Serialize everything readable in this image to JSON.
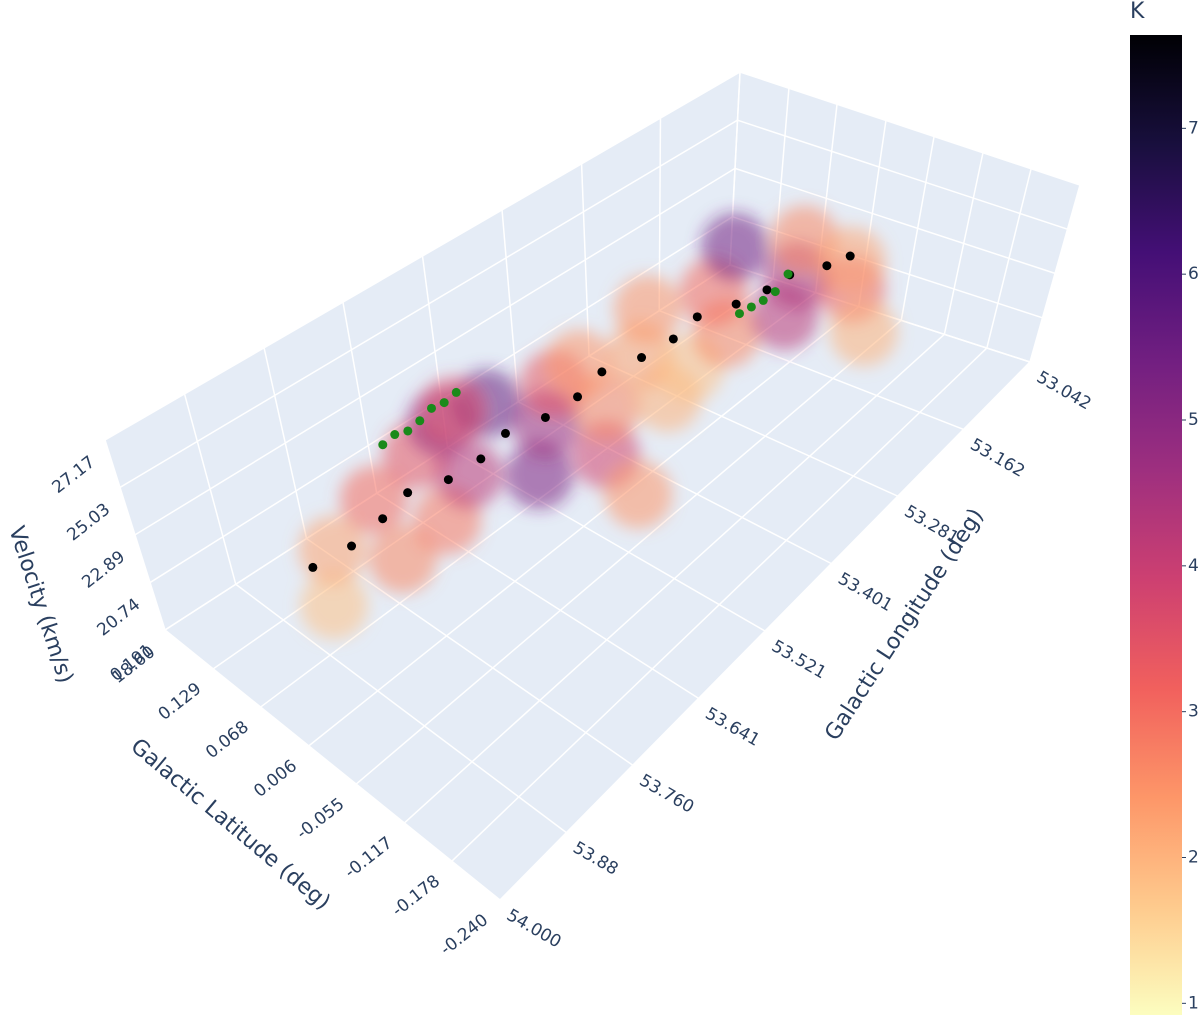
{
  "chart_data": {
    "type": "scatter3d",
    "x_title": "Galactic Longitude (deg)",
    "y_title": "Galactic Latitude (deg)",
    "z_title": "Velocity (km/s)",
    "xlim": [
      53.042,
      54.0
    ],
    "ylim": [
      -0.24,
      0.191
    ],
    "zlim": [
      18.6,
      27.17
    ],
    "xticks": [
      53.042,
      53.162,
      53.281,
      53.401,
      53.521,
      53.641,
      {
        "value": 53.76,
        "label": "53.760"
      },
      53.88,
      {
        "value": 54.0,
        "label": "54.000"
      }
    ],
    "yticks": [
      0.191,
      0.129,
      0.068,
      0.006,
      -0.055,
      -0.117,
      -0.178,
      {
        "value": -0.24,
        "label": "-0.240"
      }
    ],
    "zticks": [
      {
        "value": 18.6,
        "label": "18.60"
      },
      20.74,
      22.89,
      25.03,
      27.17
    ],
    "wall_color": "#e5ecf6",
    "grid": true,
    "colorbar": {
      "title": "K",
      "clim": [
        0.92,
        7.64
      ],
      "ticks": [
        1,
        2,
        3,
        4,
        5,
        6,
        7
      ],
      "colorscale": [
        "#fcfdbf",
        "#feca8d",
        "#fd9668",
        "#f1605d",
        "#cd4071",
        "#9e2f7f",
        "#721f81",
        "#440f76",
        "#180f3d",
        "#000004"
      ]
    },
    "volume": {
      "x": [
        53.93,
        53.88,
        53.84,
        53.8,
        53.76,
        53.72,
        53.69,
        53.66,
        53.63,
        53.6,
        53.57,
        53.55,
        53.52,
        53.5,
        53.47,
        53.44,
        53.41,
        53.38,
        53.35,
        53.31,
        53.27,
        53.24,
        53.2,
        53.17,
        53.14,
        53.11,
        53.09,
        53.15,
        53.6,
        53.55
      ],
      "y": [
        -0.02,
        0.02,
        -0.04,
        0.03,
        -0.03,
        0.04,
        0.0,
        0.06,
        -0.04,
        0.05,
        0.0,
        -0.06,
        0.03,
        -0.02,
        0.04,
        -0.05,
        0.01,
        -0.03,
        0.05,
        -0.02,
        0.03,
        -0.04,
        0.06,
        0.0,
        -0.05,
        0.04,
        -0.01,
        -0.08,
        0.1,
        -0.1
      ],
      "z": [
        24.2,
        24.6,
        24.9,
        25.0,
        24.7,
        25.2,
        24.6,
        25.0,
        24.2,
        24.9,
        24.4,
        23.8,
        24.6,
        24.1,
        24.3,
        23.8,
        24.0,
        23.5,
        24.2,
        23.4,
        23.7,
        23.0,
        23.9,
        22.8,
        22.2,
        22.7,
        21.9,
        20.8,
        23.5,
        22.8
      ],
      "k": [
        1.8,
        2.2,
        2.6,
        3.0,
        2.8,
        3.4,
        4.2,
        4.8,
        5.2,
        5.6,
        4.6,
        3.8,
        3.4,
        2.6,
        2.4,
        2.0,
        2.2,
        1.8,
        2.4,
        2.6,
        3.0,
        4.2,
        5.4,
        4.4,
        3.2,
        2.6,
        2.2,
        2.0,
        3.6,
        2.4
      ]
    },
    "series": [
      {
        "color": "#000000",
        "x": [
          53.92,
          53.87,
          53.82,
          53.77,
          53.72,
          53.67,
          53.62,
          53.57,
          53.52,
          53.47,
          53.42,
          53.37,
          53.32,
          53.27,
          53.22,
          53.17,
          53.12,
          53.08
        ],
        "y": [
          0.01,
          0.0,
          0.0,
          0.01,
          0.0,
          0.0,
          0.01,
          0.0,
          0.0,
          0.01,
          0.0,
          0.0,
          0.01,
          0.0,
          0.0,
          0.01,
          0.0,
          0.0
        ],
        "z": [
          24.9,
          25.1,
          25.3,
          25.2,
          25.0,
          24.9,
          24.8,
          24.7,
          24.6,
          24.5,
          24.3,
          24.1,
          23.9,
          23.6,
          23.2,
          22.7,
          22.2,
          21.8
        ]
      },
      {
        "color": "#1a8a1a",
        "x": [
          53.66,
          53.64,
          53.62,
          53.6,
          53.58,
          53.56,
          53.54,
          53.2,
          53.18,
          53.16,
          53.14,
          53.12
        ],
        "y": [
          0.15,
          0.15,
          0.15,
          0.15,
          0.15,
          0.15,
          0.15,
          0.05,
          0.05,
          0.05,
          0.05,
          0.05
        ],
        "z": [
          22.0,
          22.1,
          21.9,
          22.0,
          22.2,
          22.1,
          22.2,
          21.0,
          20.9,
          20.8,
          20.8,
          21.2
        ]
      }
    ]
  }
}
